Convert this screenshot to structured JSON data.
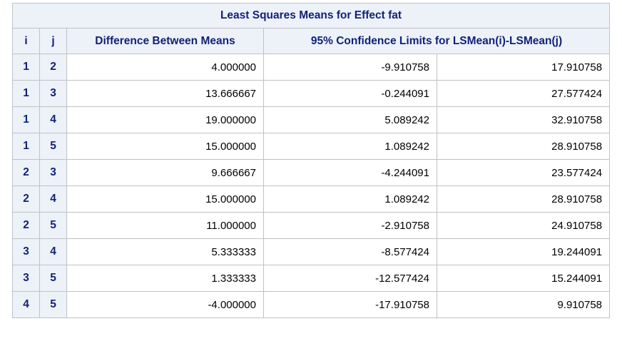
{
  "title": "Least Squares Means for Effect fat",
  "columns": {
    "i": "i",
    "j": "j",
    "diff": "Difference Between Means",
    "ci": "95% Confidence Limits for LSMean(i)-LSMean(j)"
  },
  "rows": [
    {
      "i": "1",
      "j": "2",
      "diff": "4.000000",
      "lower": "-9.910758",
      "upper": "17.910758"
    },
    {
      "i": "1",
      "j": "3",
      "diff": "13.666667",
      "lower": "-0.244091",
      "upper": "27.577424"
    },
    {
      "i": "1",
      "j": "4",
      "diff": "19.000000",
      "lower": "5.089242",
      "upper": "32.910758"
    },
    {
      "i": "1",
      "j": "5",
      "diff": "15.000000",
      "lower": "1.089242",
      "upper": "28.910758"
    },
    {
      "i": "2",
      "j": "3",
      "diff": "9.666667",
      "lower": "-4.244091",
      "upper": "23.577424"
    },
    {
      "i": "2",
      "j": "4",
      "diff": "15.000000",
      "lower": "1.089242",
      "upper": "28.910758"
    },
    {
      "i": "2",
      "j": "5",
      "diff": "11.000000",
      "lower": "-2.910758",
      "upper": "24.910758"
    },
    {
      "i": "3",
      "j": "4",
      "diff": "5.333333",
      "lower": "-8.577424",
      "upper": "19.244091"
    },
    {
      "i": "3",
      "j": "5",
      "diff": "1.333333",
      "lower": "-12.577424",
      "upper": "15.244091"
    },
    {
      "i": "4",
      "j": "5",
      "diff": "-4.000000",
      "lower": "-17.910758",
      "upper": "9.910758"
    }
  ],
  "colors": {
    "header_bg": "#edf2f9",
    "header_text": "#112277",
    "border": "#c1c1c1"
  }
}
